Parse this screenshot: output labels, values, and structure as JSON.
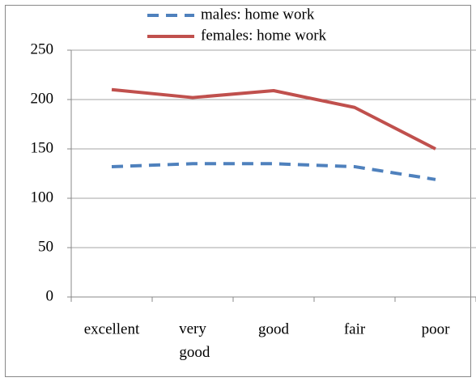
{
  "chart_data": {
    "type": "line",
    "categories": [
      "excellent",
      "very good",
      "good",
      "fair",
      "poor"
    ],
    "series": [
      {
        "name": "males: home work",
        "color": "#4f81bd",
        "dashed": true,
        "values": [
          132,
          135,
          135,
          132,
          119
        ]
      },
      {
        "name": "females: home work",
        "color": "#c0504d",
        "dashed": false,
        "values": [
          210,
          202,
          209,
          192,
          150
        ]
      }
    ],
    "ylim": [
      0,
      250
    ],
    "yticks": [
      0,
      50,
      100,
      150,
      200,
      250
    ],
    "grid": true
  }
}
